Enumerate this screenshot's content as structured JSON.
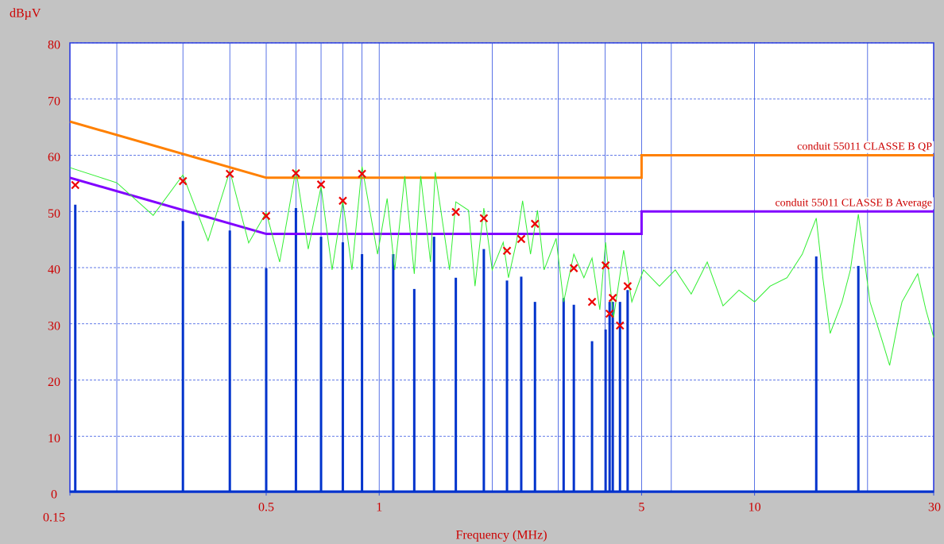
{
  "chart_data": {
    "type": "line",
    "y_label": "dBµV",
    "x_label": "Frequency (MHz)",
    "xscale": "log",
    "xlim": [
      0.15,
      30
    ],
    "ylim": [
      0,
      80
    ],
    "xticks": [
      0.15,
      0.5,
      1,
      5,
      10,
      30
    ],
    "xgrid": [
      0.2,
      0.3,
      0.4,
      0.5,
      0.6,
      0.7,
      0.8,
      0.9,
      1,
      2,
      3,
      4,
      5,
      6,
      10,
      20
    ],
    "yticks": [
      0,
      10,
      20,
      30,
      40,
      50,
      60,
      70,
      80
    ],
    "grid": true,
    "series": [
      {
        "name": "conduit 55011  CLASSE B QP",
        "style": "line",
        "color": "#ff8000",
        "width": 3,
        "x": [
          0.15,
          0.5,
          5,
          5,
          30
        ],
        "values": [
          66,
          56,
          56,
          60,
          60
        ]
      },
      {
        "name": "conduit 55011  CLASSE B Average",
        "style": "line",
        "color": "#8000ff",
        "width": 3,
        "x": [
          0.15,
          0.5,
          5,
          5,
          30
        ],
        "values": [
          56,
          46,
          46,
          50,
          50
        ]
      },
      {
        "style": "stem",
        "color": "#0033cc",
        "x": [
          0.155,
          0.3,
          0.4,
          0.5,
          0.6,
          0.7,
          0.8,
          0.9,
          1.09,
          1.24,
          1.4,
          1.6,
          1.9,
          2.19,
          2.39,
          2.6,
          3.1,
          3.3,
          3.69,
          4.01,
          4.11,
          4.19,
          4.38,
          4.59,
          14.6,
          18.9
        ],
        "values": [
          51.2,
          48.3,
          46.6,
          39.9,
          50.6,
          45.5,
          44.5,
          42.4,
          42.4,
          36.2,
          45.5,
          38.2,
          43.3,
          37.7,
          38.4,
          33.9,
          34.6,
          33.4,
          26.9,
          29.0,
          33.9,
          33.9,
          33.9,
          36.0,
          42.0,
          40.3
        ]
      },
      {
        "style": "line",
        "color": "#33ee33",
        "width": 1,
        "x": [
          0.15,
          0.2,
          0.25,
          0.3,
          0.35,
          0.4,
          0.449,
          0.5,
          0.543,
          0.6,
          0.647,
          0.7,
          0.749,
          0.8,
          0.846,
          0.9,
          0.99,
          1.05,
          1.1,
          1.17,
          1.24,
          1.29,
          1.37,
          1.41,
          1.54,
          1.6,
          1.73,
          1.8,
          1.9,
          2.0,
          2.14,
          2.21,
          2.32,
          2.41,
          2.53,
          2.64,
          2.75,
          2.96,
          3.1,
          3.3,
          3.51,
          3.69,
          3.87,
          4.01,
          4.21,
          4.48,
          4.71,
          5.06,
          5.58,
          6.15,
          6.78,
          7.48,
          8.24,
          9.09,
          10.0,
          11.0,
          12.2,
          13.4,
          14.6,
          15.2,
          15.9,
          17.1,
          18.0,
          18.9,
          20.3,
          21.9,
          22.9,
          24.7,
          27.2,
          28.6,
          30
        ],
        "values": [
          57.8,
          55.1,
          49.3,
          56.5,
          44.8,
          57.2,
          44.4,
          49.8,
          41.0,
          57.5,
          43.3,
          54.4,
          39.6,
          51.9,
          39.6,
          58.0,
          42.4,
          52.3,
          39.6,
          56.3,
          38.9,
          56.3,
          41.0,
          57.0,
          39.6,
          51.7,
          50.2,
          36.7,
          50.6,
          39.6,
          44.5,
          38.2,
          44.5,
          51.9,
          42.4,
          50.2,
          39.6,
          45.2,
          33.9,
          42.4,
          38.2,
          41.7,
          32.5,
          44.5,
          31.1,
          43.1,
          33.9,
          39.6,
          36.7,
          39.6,
          35.3,
          41.0,
          33.2,
          36.0,
          33.9,
          36.7,
          38.2,
          42.4,
          48.8,
          38.2,
          28.3,
          33.9,
          39.6,
          49.5,
          33.9,
          26.9,
          22.6,
          33.9,
          38.9,
          32.5,
          27.6
        ]
      },
      {
        "style": "x-marker",
        "color": "#ee0000",
        "x": [
          0.155,
          0.3,
          0.4,
          0.5,
          0.6,
          0.7,
          0.8,
          0.9,
          1.6,
          1.9,
          2.19,
          2.39,
          2.6,
          3.3,
          3.69,
          4.01,
          4.11,
          4.19,
          4.38,
          4.59
        ],
        "values": [
          54.7,
          55.4,
          56.7,
          49.2,
          56.8,
          54.8,
          51.9,
          56.7,
          49.9,
          48.8,
          43.0,
          45.1,
          47.8,
          39.9,
          33.9,
          40.4,
          31.8,
          34.6,
          29.7,
          36.7
        ]
      }
    ]
  }
}
